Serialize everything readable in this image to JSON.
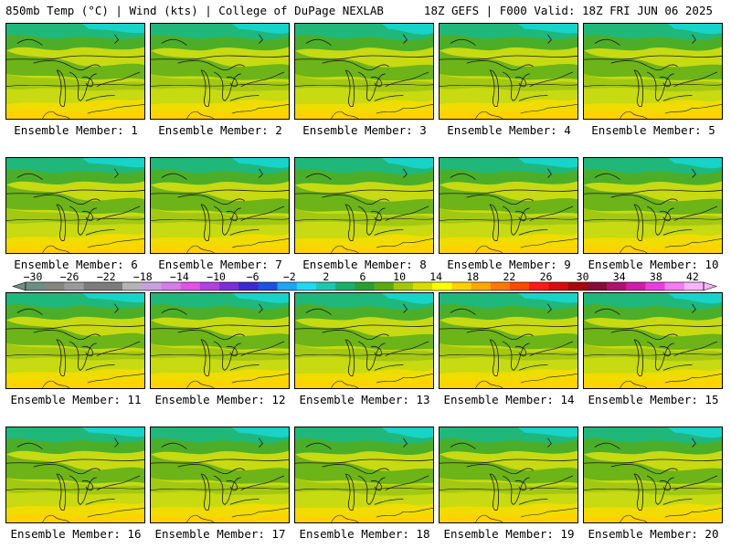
{
  "header": {
    "left_title": "850mb Temp (°C) | Wind (kts) | College of DuPage NEXLAB",
    "right_title": "18Z GEFS | F000 Valid: 18Z FRI JUN 06 2025"
  },
  "map": {
    "region": "Great Lakes",
    "members": [
      "Ensemble Member: 1",
      "Ensemble Member: 2",
      "Ensemble Member: 3",
      "Ensemble Member: 4",
      "Ensemble Member: 5",
      "Ensemble Member: 6",
      "Ensemble Member: 7",
      "Ensemble Member: 8",
      "Ensemble Member: 9",
      "Ensemble Member: 10",
      "Ensemble Member: 11",
      "Ensemble Member: 12",
      "Ensemble Member: 13",
      "Ensemble Member: 14",
      "Ensemble Member: 15",
      "Ensemble Member: 16",
      "Ensemble Member: 17",
      "Ensemble Member: 18",
      "Ensemble Member: 19",
      "Ensemble Member: 20"
    ]
  },
  "colorbar": {
    "ticks": [
      "−30",
      "−26",
      "−22",
      "−18",
      "−14",
      "−10",
      "−6",
      "−2",
      "2",
      "6",
      "10",
      "14",
      "18",
      "22",
      "26",
      "30",
      "34",
      "38",
      "42"
    ],
    "colors": [
      "#6e8e84",
      "#86867e",
      "#9a9a9a",
      "#7c7c7c",
      "#7c7c7c",
      "#b4b4b4",
      "#c8a0e0",
      "#d27ee6",
      "#e052e8",
      "#b040e0",
      "#7a2ed8",
      "#3c28d0",
      "#1c52e0",
      "#1ea6f0",
      "#20d8f0",
      "#1ec8b0",
      "#18b068",
      "#2aa030",
      "#5aaa10",
      "#a4c808",
      "#d8dc00",
      "#ffff00",
      "#ffd000",
      "#ffa800",
      "#ff7800",
      "#ff4800",
      "#ff1818",
      "#d80c0c",
      "#a80808",
      "#880c38",
      "#b0106e",
      "#d01ca8",
      "#ec3ce0",
      "#f47cf2",
      "#f8b4f8"
    ]
  }
}
